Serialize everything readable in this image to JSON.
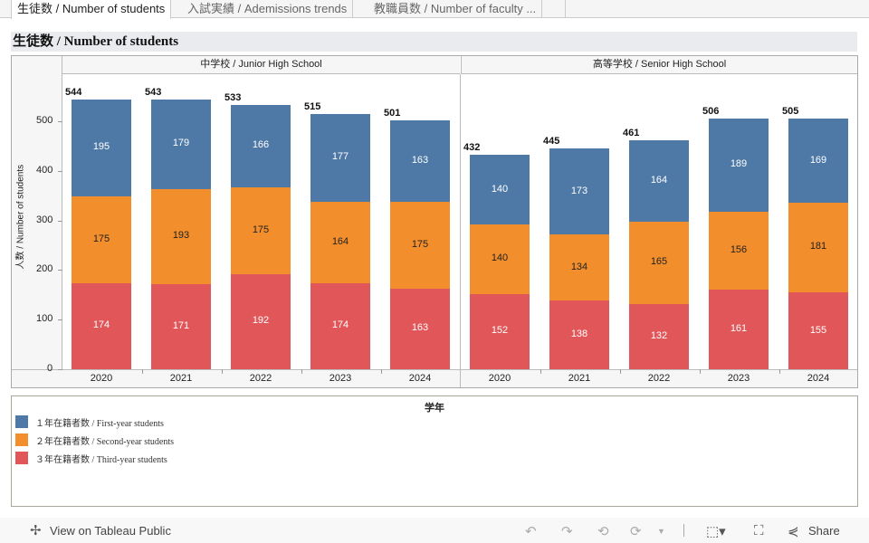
{
  "tabs": [
    {
      "label": "生徒数 / Number of students",
      "active": true
    },
    {
      "label": "入試実績 / Ademissions trends"
    },
    {
      "label": "教職員数 / Number of faculty ..."
    }
  ],
  "title": "生徒数 / Number of students",
  "colors": {
    "first": "#4e79a7",
    "second": "#f28e2b",
    "third": "#e15759"
  },
  "chart_data": {
    "type": "bar",
    "stacked": true,
    "ylabel": "人数 / Number of students",
    "ylim": [
      0,
      560
    ],
    "yticks": [
      0,
      100,
      200,
      300,
      400,
      500
    ],
    "panels": [
      {
        "name": "中学校 / Junior High School",
        "categories": [
          "2020",
          "2021",
          "2022",
          "2023",
          "2024"
        ],
        "totals": [
          544,
          543,
          533,
          515,
          501
        ],
        "series": [
          {
            "name": "３年在籍者数 / Third-year students",
            "values": [
              174,
              171,
              192,
              174,
              163
            ]
          },
          {
            "name": "２年在籍者数 / Second-year students",
            "values": [
              175,
              193,
              175,
              164,
              175
            ]
          },
          {
            "name": "１年在籍者数 / First-year students",
            "values": [
              195,
              179,
              166,
              177,
              163
            ]
          }
        ]
      },
      {
        "name": "高等学校 / Senior High School",
        "categories": [
          "2020",
          "2021",
          "2022",
          "2023",
          "2024"
        ],
        "totals": [
          432,
          445,
          461,
          506,
          505
        ],
        "series": [
          {
            "name": "３年在籍者数 / Third-year students",
            "values": [
              152,
              138,
              132,
              161,
              155
            ]
          },
          {
            "name": "２年在籍者数 / Second-year students",
            "values": [
              140,
              134,
              165,
              156,
              181
            ]
          },
          {
            "name": "１年在籍者数 / First-year students",
            "values": [
              140,
              173,
              164,
              189,
              169
            ]
          }
        ]
      }
    ]
  },
  "legend": {
    "title": "学年",
    "items": [
      "１年在籍者数 / First-year students",
      "２年在籍者数 / Second-year students",
      "３年在籍者数 / Third-year students"
    ]
  },
  "footer": {
    "view_label": "View on Tableau Public",
    "share_label": "Share"
  }
}
